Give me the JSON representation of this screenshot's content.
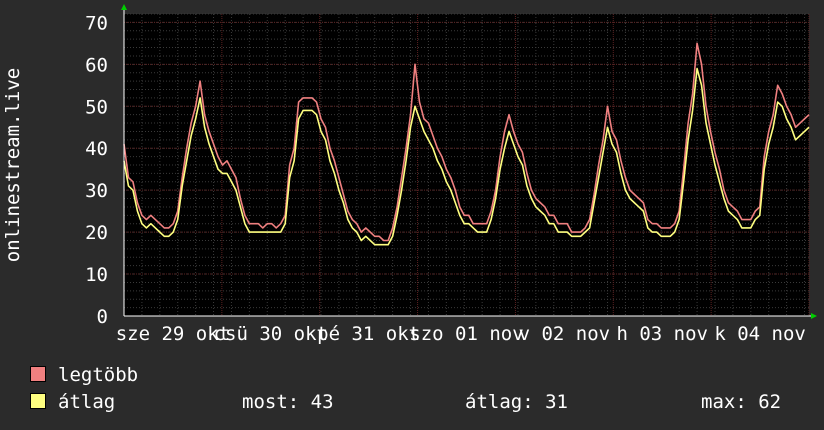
{
  "chart_data": {
    "type": "line",
    "ylabel": "onlinestream.live",
    "ylim": [
      0,
      72
    ],
    "yticks": [
      0,
      10,
      20,
      30,
      40,
      50,
      60,
      70
    ],
    "day_labels": [
      "sze 29 okt",
      "csü 30 okt",
      "pé 31 okt",
      "szo 01 nov",
      "v 02 nov",
      "h 03 nov",
      "k 04 nov"
    ],
    "grid": true,
    "colors": {
      "background": "#2b2b2b",
      "plot": "#000000",
      "grid": "#5a2020",
      "max": "#f08080",
      "avg": "#ffff80",
      "axis_arrow": "#00cc00"
    },
    "series": [
      {
        "name": "legtöbb",
        "color": "#f08080",
        "values": [
          41,
          33,
          32,
          27,
          24,
          23,
          24,
          23,
          22,
          21,
          21,
          22,
          25,
          33,
          40,
          46,
          50,
          56,
          48,
          44,
          41,
          38,
          36,
          37,
          35,
          33,
          28,
          24,
          22,
          22,
          22,
          21,
          22,
          22,
          21,
          22,
          24,
          36,
          40,
          51,
          52,
          52,
          52,
          51,
          47,
          45,
          40,
          37,
          33,
          29,
          25,
          23,
          22,
          20,
          21,
          20,
          19,
          19,
          18,
          18,
          21,
          26,
          33,
          40,
          48,
          60,
          51,
          47,
          46,
          43,
          40,
          38,
          35,
          33,
          30,
          26,
          24,
          24,
          22,
          22,
          22,
          22,
          25,
          30,
          38,
          44,
          48,
          44,
          41,
          39,
          34,
          30,
          28,
          27,
          26,
          24,
          24,
          22,
          22,
          22,
          20,
          20,
          20,
          21,
          23,
          29,
          36,
          42,
          50,
          44,
          42,
          37,
          33,
          30,
          29,
          28,
          27,
          23,
          22,
          22,
          21,
          21,
          21,
          22,
          25,
          35,
          46,
          53,
          65,
          60,
          50,
          44,
          39,
          35,
          30,
          27,
          26,
          25,
          23,
          23,
          23,
          25,
          26,
          38,
          44,
          48,
          55,
          53,
          50,
          48,
          45,
          46,
          47,
          48
        ]
      },
      {
        "name": "átlag",
        "color": "#ffff80",
        "values": [
          37,
          31,
          30,
          25,
          22,
          21,
          22,
          21,
          20,
          19,
          19,
          20,
          23,
          31,
          37,
          43,
          47,
          52,
          45,
          41,
          38,
          35,
          34,
          34,
          32,
          30,
          26,
          22,
          20,
          20,
          20,
          20,
          20,
          20,
          20,
          20,
          22,
          33,
          37,
          47,
          49,
          49,
          49,
          48,
          44,
          42,
          37,
          34,
          30,
          27,
          23,
          21,
          20,
          18,
          19,
          18,
          17,
          17,
          17,
          17,
          19,
          24,
          30,
          37,
          45,
          50,
          47,
          44,
          42,
          40,
          37,
          35,
          32,
          30,
          27,
          24,
          22,
          22,
          21,
          20,
          20,
          20,
          23,
          28,
          35,
          40,
          44,
          41,
          38,
          36,
          31,
          28,
          26,
          25,
          24,
          22,
          22,
          20,
          20,
          20,
          19,
          19,
          19,
          20,
          21,
          27,
          33,
          39,
          45,
          41,
          39,
          34,
          30,
          28,
          27,
          26,
          25,
          21,
          20,
          20,
          19,
          19,
          19,
          20,
          23,
          32,
          42,
          49,
          59,
          55,
          46,
          41,
          36,
          32,
          28,
          25,
          24,
          23,
          21,
          21,
          21,
          23,
          24,
          35,
          41,
          45,
          51,
          50,
          47,
          45,
          42,
          43,
          44,
          45
        ]
      }
    ]
  },
  "legend": [
    {
      "label": "legtöbb",
      "color": "#f08080"
    },
    {
      "label": "átlag",
      "color": "#ffff80"
    }
  ],
  "stats": {
    "now": "most: 43",
    "avg": "átlag: 31",
    "max": "max: 62"
  }
}
